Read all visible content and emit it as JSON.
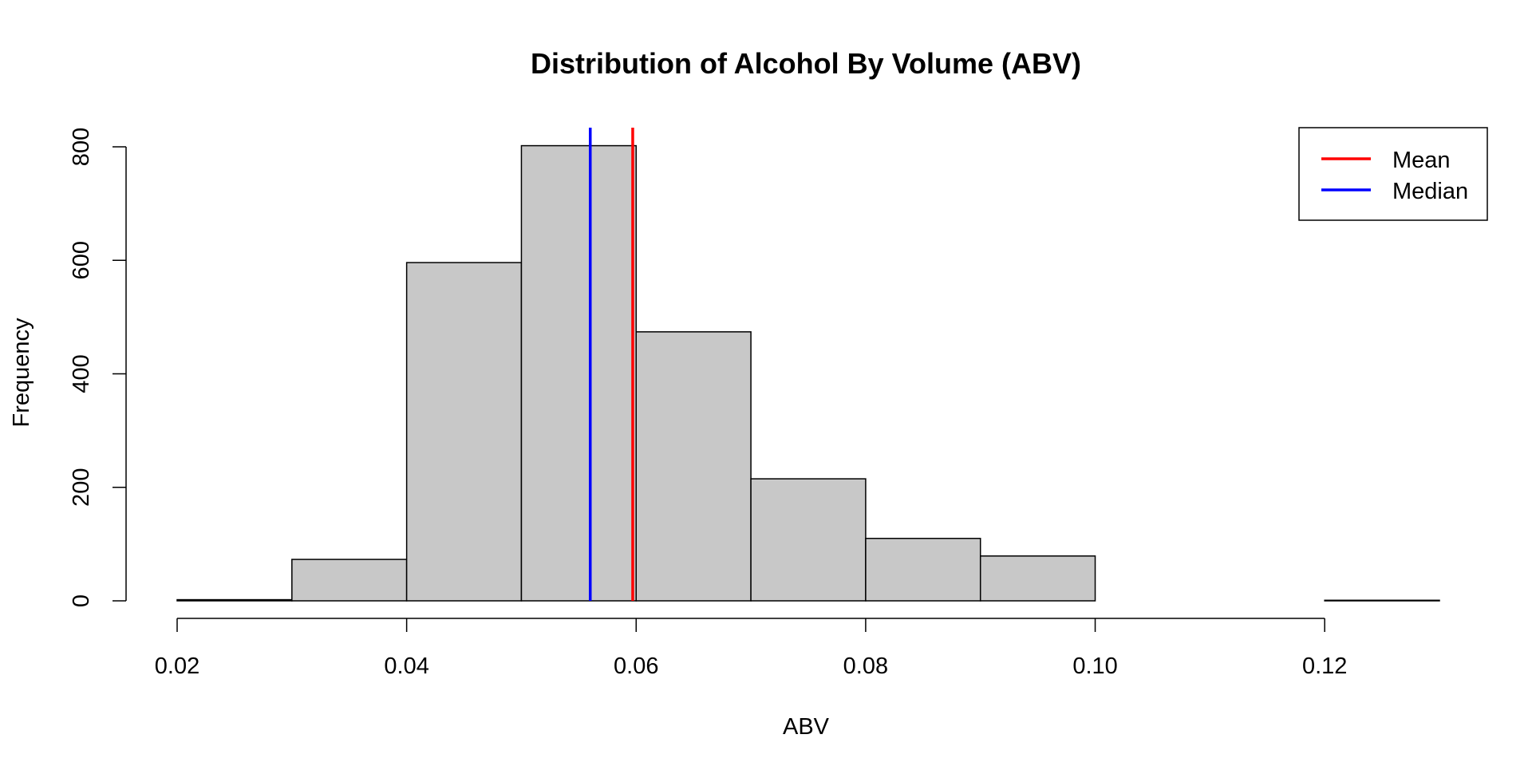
{
  "chart_data": {
    "type": "histogram",
    "title": "Distribution of Alcohol By Volume (ABV)",
    "xlabel": "ABV",
    "ylabel": "Frequency",
    "xlim": [
      0.02,
      0.13
    ],
    "ylim": [
      0,
      800
    ],
    "x_ticks": [
      0.02,
      0.04,
      0.06,
      0.08,
      0.1,
      0.12
    ],
    "x_tick_labels": [
      "0.02",
      "0.04",
      "0.06",
      "0.08",
      "0.10",
      "0.12"
    ],
    "y_ticks": [
      0,
      200,
      400,
      600,
      800
    ],
    "y_tick_labels": [
      "0",
      "200",
      "400",
      "600",
      "800"
    ],
    "bins": [
      {
        "x0": 0.02,
        "x1": 0.03,
        "count": 2
      },
      {
        "x0": 0.03,
        "x1": 0.04,
        "count": 73
      },
      {
        "x0": 0.04,
        "x1": 0.05,
        "count": 596
      },
      {
        "x0": 0.05,
        "x1": 0.06,
        "count": 802
      },
      {
        "x0": 0.06,
        "x1": 0.07,
        "count": 474
      },
      {
        "x0": 0.07,
        "x1": 0.08,
        "count": 215
      },
      {
        "x0": 0.08,
        "x1": 0.09,
        "count": 110
      },
      {
        "x0": 0.09,
        "x1": 0.1,
        "count": 79
      },
      {
        "x0": 0.1,
        "x1": 0.11,
        "count": 0
      },
      {
        "x0": 0.11,
        "x1": 0.12,
        "count": 0
      },
      {
        "x0": 0.12,
        "x1": 0.13,
        "count": 1
      }
    ],
    "bar_fill": "#c8c8c8",
    "bar_stroke": "#000000",
    "reference_lines": [
      {
        "name": "Mean",
        "value": 0.0597,
        "color": "#ff0000"
      },
      {
        "name": "Median",
        "value": 0.056,
        "color": "#0000ff"
      }
    ],
    "legend": {
      "position": "top-right",
      "entries": [
        {
          "label": "Mean",
          "color": "#ff0000"
        },
        {
          "label": "Median",
          "color": "#0000ff"
        }
      ]
    },
    "grid": false
  }
}
